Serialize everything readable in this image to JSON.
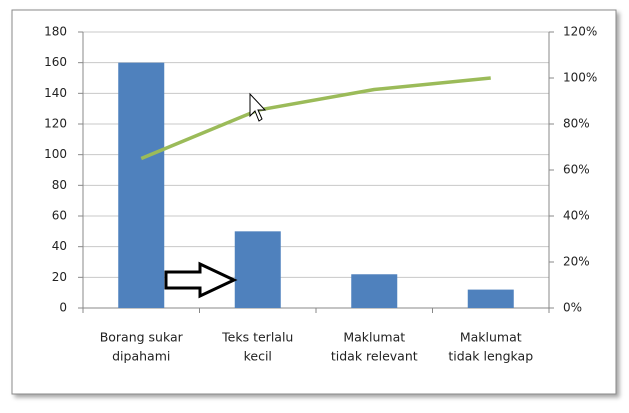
{
  "chart_data": {
    "type": "pareto",
    "categories": [
      [
        "Borang sukar",
        "dipahami"
      ],
      [
        "Teks terlalu",
        "kecil"
      ],
      [
        "Maklumat",
        "tidak relevant"
      ],
      [
        "Maklumat",
        "tidak lengkap"
      ]
    ],
    "series": [
      {
        "type": "bar",
        "color": "#4f81bd",
        "values": [
          160,
          50,
          22,
          12
        ]
      },
      {
        "type": "line",
        "axis": "y2",
        "color": "#9bbb59",
        "values": [
          65,
          86,
          95,
          100
        ]
      }
    ],
    "ylim": [
      0,
      180
    ],
    "yticks": [
      0,
      20,
      40,
      60,
      80,
      100,
      120,
      140,
      160,
      180
    ],
    "y2lim": [
      0,
      120
    ],
    "y2ticks": [
      {
        "value": 0,
        "label": "0%"
      },
      {
        "value": 20,
        "label": "20%"
      },
      {
        "value": 40,
        "label": "40%"
      },
      {
        "value": 60,
        "label": "60%"
      },
      {
        "value": 80,
        "label": "80%"
      },
      {
        "value": 100,
        "label": "100%"
      },
      {
        "value": 120,
        "label": "120%"
      }
    ],
    "grid": true
  }
}
